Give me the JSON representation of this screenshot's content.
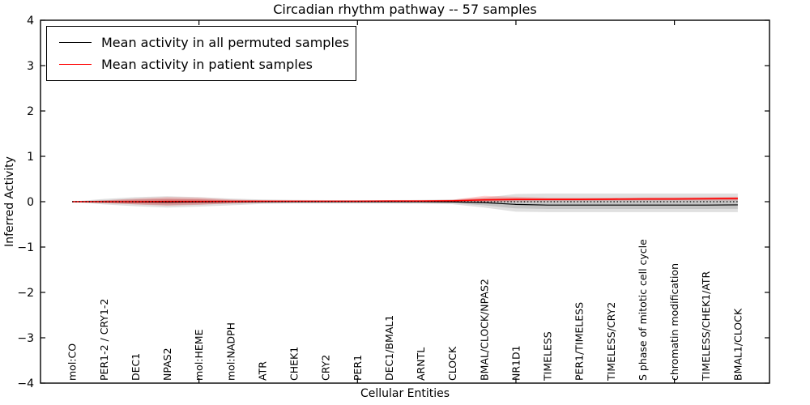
{
  "figure": {
    "title": "Circadian rhythm pathway -- 57 samples",
    "xlabel": "Cellular Entities",
    "ylabel": "Inferred Activity"
  },
  "legend": {
    "position": "upper left",
    "entries": [
      {
        "label": "Mean activity in all permuted samples",
        "color": "#000000"
      },
      {
        "label": "Mean activity in patient samples",
        "color": "#ff0000"
      }
    ]
  },
  "chart_data": {
    "type": "line",
    "title": "Circadian rhythm pathway -- 57 samples",
    "xlabel": "Cellular Entities",
    "ylabel": "Inferred Activity",
    "xlim": [
      0,
      23
    ],
    "ylim": [
      -4,
      4
    ],
    "yticks": [
      4,
      3,
      2,
      1,
      0,
      -1,
      -2,
      -3,
      -4
    ],
    "ytick_labels": [
      "4",
      "3",
      "2",
      "1",
      "0",
      "−1",
      "−2",
      "−3",
      "−4"
    ],
    "xtick_positions": [
      5,
      10,
      15,
      20
    ],
    "grid": false,
    "legend_position": "upper left",
    "categories": [
      "mol:CO",
      "PER1-2 / CRY1-2",
      "DEC1",
      "NPAS2",
      "mol:HEME",
      "mol:NADPH",
      "ATR",
      "CHEK1",
      "CRY2",
      "PER1",
      "DEC1/BMAL1",
      "ARNTL",
      "CLOCK",
      "BMAL/CLOCK/NPAS2",
      "NR1D1",
      "TIMELESS",
      "PER1/TIMELESS",
      "TIMELESS/CRY2",
      "S phase of mitotic cell cycle",
      "chromatin modification",
      "TIMELESS/CHEK1/ATR",
      "BMAL1/CLOCK"
    ],
    "x": [
      1,
      2,
      3,
      4,
      5,
      6,
      7,
      8,
      9,
      10,
      11,
      12,
      13,
      14,
      15,
      16,
      17,
      18,
      19,
      20,
      21,
      22
    ],
    "series": [
      {
        "name": "Mean activity in all permuted samples",
        "color": "#000000",
        "line_width": 1.2,
        "values": [
          0,
          0,
          -0.005,
          -0.01,
          -0.005,
          0,
          0,
          0,
          0,
          0,
          0,
          0,
          -0.005,
          -0.02,
          -0.06,
          -0.075,
          -0.075,
          -0.075,
          -0.075,
          -0.075,
          -0.075,
          -0.07
        ],
        "band_upper": [
          0.005,
          0.06,
          0.1,
          0.12,
          0.1,
          0.07,
          0.05,
          0.04,
          0.035,
          0.035,
          0.035,
          0.04,
          0.05,
          0.09,
          0.17,
          0.18,
          0.18,
          0.18,
          0.18,
          0.18,
          0.18,
          0.18
        ],
        "band_lower": [
          -0.005,
          -0.06,
          -0.1,
          -0.13,
          -0.11,
          -0.08,
          -0.05,
          -0.04,
          -0.04,
          -0.04,
          -0.04,
          -0.045,
          -0.055,
          -0.13,
          -0.22,
          -0.23,
          -0.23,
          -0.23,
          -0.23,
          -0.23,
          -0.23,
          -0.23
        ],
        "band_color": "rgba(0,0,0,0.12)"
      },
      {
        "name": "Mean activity in patient samples",
        "color": "#ff0000",
        "line_width": 1.6,
        "values": [
          0,
          0,
          0,
          0.005,
          0.005,
          0.005,
          0.01,
          0.01,
          0.01,
          0.01,
          0.015,
          0.015,
          0.02,
          0.04,
          0.05,
          0.05,
          0.05,
          0.055,
          0.06,
          0.06,
          0.065,
          0.07
        ],
        "band_upper": [
          0.005,
          0.03,
          0.07,
          0.1,
          0.09,
          0.05,
          0.03,
          0.02,
          0.02,
          0.025,
          0.03,
          0.03,
          0.045,
          0.13,
          0.11,
          0.09,
          0.09,
          0.09,
          0.095,
          0.1,
          0.1,
          0.11
        ],
        "band_lower": [
          -0.005,
          -0.03,
          -0.06,
          -0.09,
          -0.07,
          -0.04,
          -0.02,
          -0.01,
          -0.005,
          0,
          0,
          0,
          0,
          -0.005,
          0.01,
          0.015,
          0.015,
          0.02,
          0.025,
          0.03,
          0.03,
          0.03
        ],
        "band_color": "rgba(255,0,0,0.18)"
      }
    ],
    "reference_line": {
      "y": 0,
      "color": "#000000",
      "style": "dotted"
    },
    "band_inner_scale": 0.55
  }
}
